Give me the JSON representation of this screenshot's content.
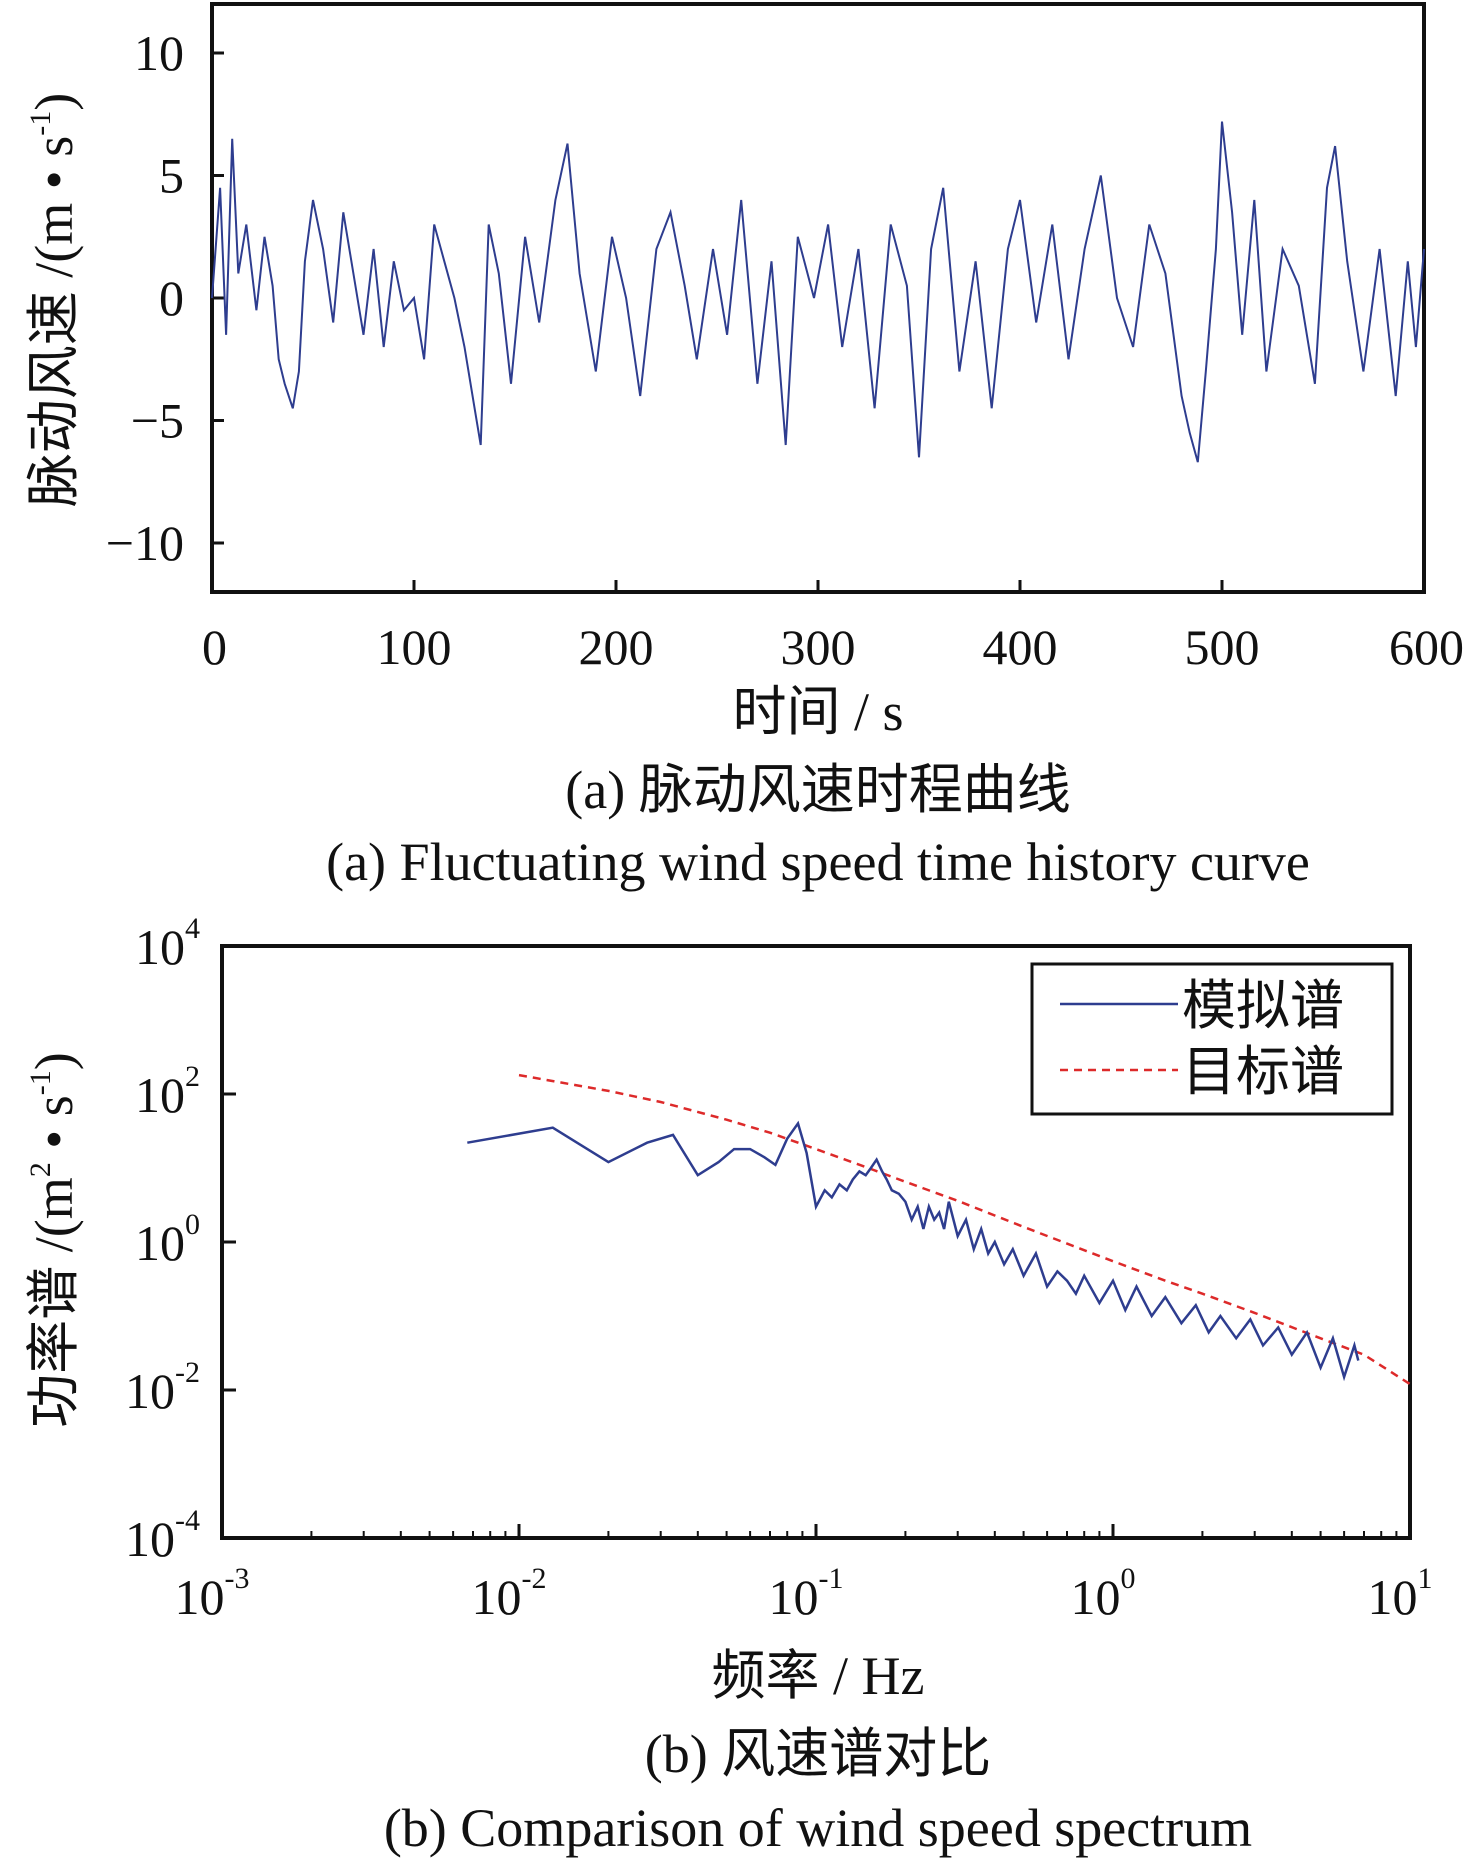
{
  "chart_data": [
    {
      "id": "a",
      "type": "line",
      "xlabel": "时间 / s",
      "ylabel_main": "脉动风速 /(m • s",
      "ylabel_sup": "-1",
      "ylabel_close": ")",
      "xlim": [
        0,
        600
      ],
      "ylim": [
        -12,
        12
      ],
      "xticks": [
        0,
        100,
        200,
        300,
        400,
        500,
        600
      ],
      "xtick_labels": [
        "0",
        "100",
        "200",
        "300",
        "400",
        "500",
        "600"
      ],
      "yticks": [
        10,
        5,
        0,
        -5,
        -10
      ],
      "ytick_labels": [
        "10",
        "5",
        "0",
        "−5",
        "−10"
      ],
      "caption_cn": "(a)  脉动风速时程曲线",
      "caption_en": "(a)  Fluctuating wind speed time history curve",
      "series": [
        {
          "color": "#2e3d8f",
          "x": [
            0,
            4,
            7,
            10,
            13,
            17,
            22,
            26,
            30,
            33,
            36,
            40,
            43,
            46,
            50,
            55,
            60,
            65,
            70,
            75,
            80,
            85,
            90,
            95,
            100,
            105,
            110,
            115,
            120,
            125,
            130,
            133,
            137,
            142,
            148,
            155,
            162,
            170,
            176,
            182,
            190,
            198,
            205,
            212,
            220,
            227,
            234,
            240,
            248,
            255,
            262,
            270,
            277,
            284,
            290,
            298,
            305,
            312,
            320,
            328,
            336,
            344,
            350,
            356,
            362,
            370,
            378,
            386,
            394,
            400,
            408,
            416,
            424,
            432,
            440,
            448,
            456,
            464,
            472,
            480,
            484,
            488,
            492,
            497,
            500,
            505,
            510,
            516,
            522,
            530,
            538,
            546,
            552,
            556,
            562,
            570,
            578,
            586,
            592,
            596,
            600
          ],
          "y": [
            0.0,
            4.5,
            -1.5,
            6.5,
            1.0,
            3.0,
            -0.5,
            2.5,
            0.5,
            -2.5,
            -3.5,
            -4.5,
            -3.0,
            1.5,
            4.0,
            2.0,
            -1.0,
            3.5,
            1.0,
            -1.5,
            2.0,
            -2.0,
            1.5,
            -0.5,
            0.0,
            -2.5,
            3.0,
            1.5,
            0.0,
            -2.0,
            -4.5,
            -6.0,
            3.0,
            1.0,
            -3.5,
            2.5,
            -1.0,
            4.0,
            6.3,
            1.0,
            -3.0,
            2.5,
            0.0,
            -4.0,
            2.0,
            3.5,
            0.5,
            -2.5,
            2.0,
            -1.5,
            4.0,
            -3.5,
            1.5,
            -6.0,
            2.5,
            0.0,
            3.0,
            -2.0,
            2.0,
            -4.5,
            3.0,
            0.5,
            -6.5,
            2.0,
            4.5,
            -3.0,
            1.5,
            -4.5,
            2.0,
            4.0,
            -1.0,
            3.0,
            -2.5,
            2.0,
            5.0,
            0.0,
            -2.0,
            3.0,
            1.0,
            -4.0,
            -5.5,
            -6.7,
            -3.0,
            2.0,
            7.2,
            3.5,
            -1.5,
            4.0,
            -3.0,
            2.0,
            0.5,
            -3.5,
            4.5,
            6.2,
            1.5,
            -3.0,
            2.0,
            -4.0,
            1.5,
            -2.0,
            2.0
          ]
        }
      ]
    },
    {
      "id": "b",
      "type": "line",
      "xlabel": "频率 / Hz",
      "ylabel_main": "功率谱 /(m",
      "ylabel_sup1": "2",
      "ylabel_mid": " • s",
      "ylabel_sup2": "-1",
      "ylabel_close": ")",
      "x_scale": "log",
      "y_scale": "log",
      "xlim": [
        0.001,
        10
      ],
      "ylim": [
        0.0001,
        10000
      ],
      "x_exponents": [
        -3,
        -2,
        -1,
        0,
        1
      ],
      "xtick_labels": [
        {
          "base": "10",
          "exp": "-3"
        },
        {
          "base": "10",
          "exp": "-2"
        },
        {
          "base": "10",
          "exp": "-1"
        },
        {
          "base": "10",
          "exp": "0"
        },
        {
          "base": "10",
          "exp": "1"
        }
      ],
      "y_exponents": [
        4,
        2,
        0,
        -2,
        -4
      ],
      "ytick_labels": [
        {
          "base": "10",
          "exp": "4"
        },
        {
          "base": "10",
          "exp": "2"
        },
        {
          "base": "10",
          "exp": "0"
        },
        {
          "base": "10",
          "exp": "-2"
        },
        {
          "base": "10",
          "exp": "-4"
        }
      ],
      "legend": {
        "position": "top-right",
        "entries": [
          "模拟谱",
          "目标谱"
        ]
      },
      "caption_cn": "(b)  风速谱对比",
      "caption_en": "(b)  Comparison of wind speed spectrum",
      "series": [
        {
          "name": "模拟谱",
          "color": "#2e3d8f",
          "style": "solid",
          "x": [
            0.0067,
            0.013,
            0.02,
            0.027,
            0.033,
            0.04,
            0.047,
            0.053,
            0.06,
            0.067,
            0.073,
            0.08,
            0.087,
            0.093,
            0.1,
            0.107,
            0.113,
            0.12,
            0.127,
            0.133,
            0.14,
            0.147,
            0.153,
            0.16,
            0.167,
            0.173,
            0.18,
            0.19,
            0.2,
            0.21,
            0.22,
            0.23,
            0.24,
            0.25,
            0.26,
            0.27,
            0.28,
            0.3,
            0.32,
            0.34,
            0.36,
            0.38,
            0.4,
            0.43,
            0.46,
            0.5,
            0.55,
            0.6,
            0.65,
            0.7,
            0.75,
            0.8,
            0.9,
            1.0,
            1.1,
            1.2,
            1.35,
            1.5,
            1.7,
            1.9,
            2.1,
            2.3,
            2.6,
            2.9,
            3.2,
            3.6,
            4.0,
            4.5,
            5.0,
            5.5,
            6.0,
            6.5,
            6.7
          ],
          "y": [
            22,
            35,
            12,
            22,
            28,
            8,
            12,
            18,
            18,
            14,
            11,
            25,
            40,
            16,
            3.0,
            5,
            4,
            6,
            5,
            7,
            9,
            8,
            10,
            13,
            9,
            7,
            5,
            4.5,
            3.5,
            2.0,
            3.0,
            1.5,
            3.0,
            2.0,
            2.5,
            1.5,
            3.5,
            1.2,
            2.0,
            0.8,
            1.5,
            0.7,
            1.0,
            0.5,
            0.8,
            0.35,
            0.7,
            0.25,
            0.4,
            0.3,
            0.2,
            0.35,
            0.15,
            0.3,
            0.12,
            0.25,
            0.1,
            0.18,
            0.08,
            0.14,
            0.06,
            0.1,
            0.05,
            0.09,
            0.04,
            0.07,
            0.03,
            0.06,
            0.02,
            0.05,
            0.015,
            0.04,
            0.025
          ]
        },
        {
          "name": "目标谱",
          "color": "#dd2a2a",
          "style": "dashed",
          "x": [
            0.01,
            0.02,
            0.03,
            0.05,
            0.07,
            0.1,
            0.15,
            0.2,
            0.3,
            0.5,
            0.7,
            1.0,
            1.5,
            2.0,
            3.0,
            5.0,
            7.0,
            10.0
          ],
          "y": [
            180,
            110,
            78,
            45,
            30,
            18,
            10,
            6.5,
            3.6,
            1.6,
            0.95,
            0.55,
            0.3,
            0.2,
            0.11,
            0.05,
            0.03,
            0.012
          ]
        }
      ]
    }
  ]
}
